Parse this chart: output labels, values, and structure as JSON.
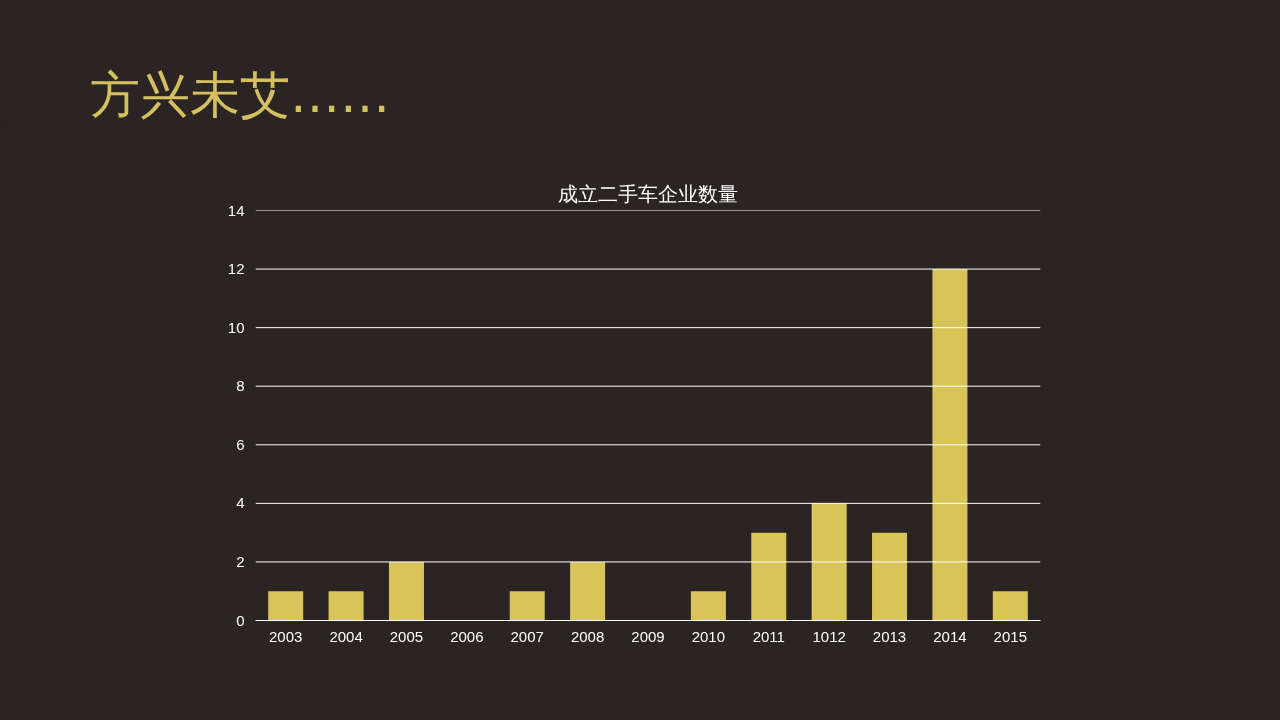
{
  "chart_data": {
    "type": "bar",
    "title": "成立二手车企业数量",
    "annotations": [
      "方兴未艾……"
    ],
    "categories": [
      "2003",
      "2004",
      "2005",
      "2006",
      "2007",
      "2008",
      "2009",
      "2010",
      "2011",
      "1012",
      "2013",
      "2014",
      "2015"
    ],
    "values": [
      1,
      1,
      2,
      0,
      1,
      2,
      0,
      1,
      3,
      4,
      3,
      12,
      1
    ],
    "color": "#d9c45a",
    "ylim": [
      0,
      14
    ],
    "yticks": [
      0,
      2,
      4,
      6,
      8,
      10,
      12,
      14
    ],
    "grid": "y"
  }
}
